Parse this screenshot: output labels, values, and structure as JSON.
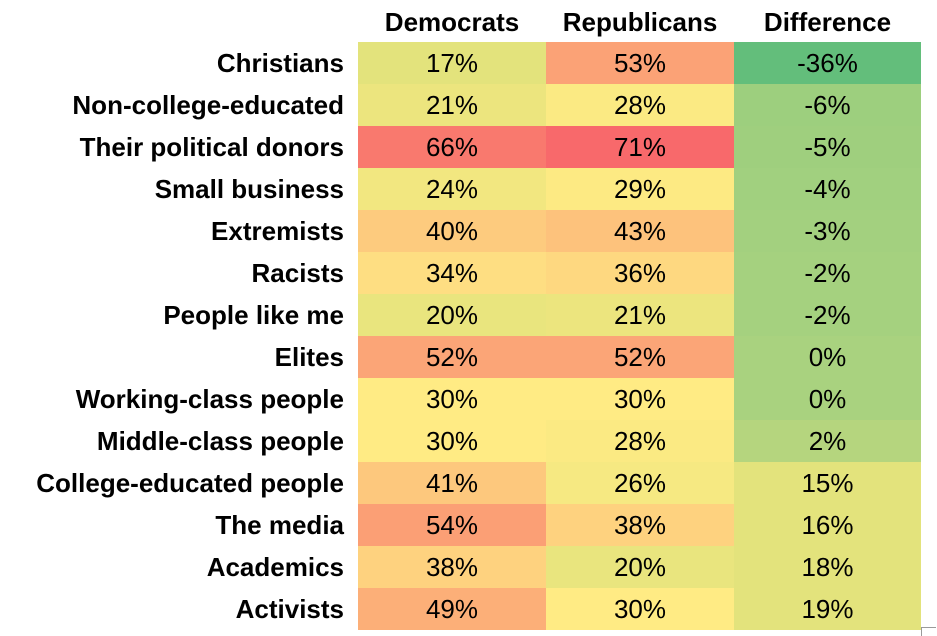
{
  "chart_data": {
    "type": "table",
    "title": "",
    "columns": [
      "Democrats",
      "Republicans",
      "Difference"
    ],
    "rows": [
      {
        "label": "Christians",
        "values": [
          17,
          53,
          -36
        ],
        "display": [
          "17%",
          "53%",
          "-36%"
        ]
      },
      {
        "label": "Non-college-educated",
        "values": [
          21,
          28,
          -6
        ],
        "display": [
          "21%",
          "28%",
          "-6%"
        ]
      },
      {
        "label": "Their political donors",
        "values": [
          66,
          71,
          -5
        ],
        "display": [
          "66%",
          "71%",
          "-5%"
        ]
      },
      {
        "label": "Small business",
        "values": [
          24,
          29,
          -4
        ],
        "display": [
          "24%",
          "29%",
          "-4%"
        ]
      },
      {
        "label": "Extremists",
        "values": [
          40,
          43,
          -3
        ],
        "display": [
          "40%",
          "43%",
          "-3%"
        ]
      },
      {
        "label": "Racists",
        "values": [
          34,
          36,
          -2
        ],
        "display": [
          "34%",
          "36%",
          "-2%"
        ]
      },
      {
        "label": "People like me",
        "values": [
          20,
          21,
          -2
        ],
        "display": [
          "20%",
          "21%",
          "-2%"
        ]
      },
      {
        "label": "Elites",
        "values": [
          52,
          52,
          0
        ],
        "display": [
          "52%",
          "52%",
          "0%"
        ]
      },
      {
        "label": "Working-class people",
        "values": [
          30,
          30,
          0
        ],
        "display": [
          "30%",
          "30%",
          "0%"
        ]
      },
      {
        "label": "Middle-class people",
        "values": [
          30,
          28,
          2
        ],
        "display": [
          "30%",
          "28%",
          "2%"
        ]
      },
      {
        "label": "College-educated people",
        "values": [
          41,
          26,
          15
        ],
        "display": [
          "41%",
          "26%",
          "15%"
        ]
      },
      {
        "label": "The media",
        "values": [
          54,
          38,
          16
        ],
        "display": [
          "54%",
          "38%",
          "16%"
        ]
      },
      {
        "label": "Academics",
        "values": [
          38,
          20,
          18
        ],
        "display": [
          "38%",
          "20%",
          "18%"
        ]
      },
      {
        "label": "Activists",
        "values": [
          49,
          30,
          19
        ],
        "display": [
          "49%",
          "30%",
          "19%"
        ]
      }
    ],
    "color_scale": {
      "low": "#E3E37C",
      "mid": "#FFEB84",
      "high": "#F8696B",
      "diff_low": "#63BE7B",
      "diff_mid": "#A9D27F",
      "diff_high": "#E3E37C"
    }
  }
}
